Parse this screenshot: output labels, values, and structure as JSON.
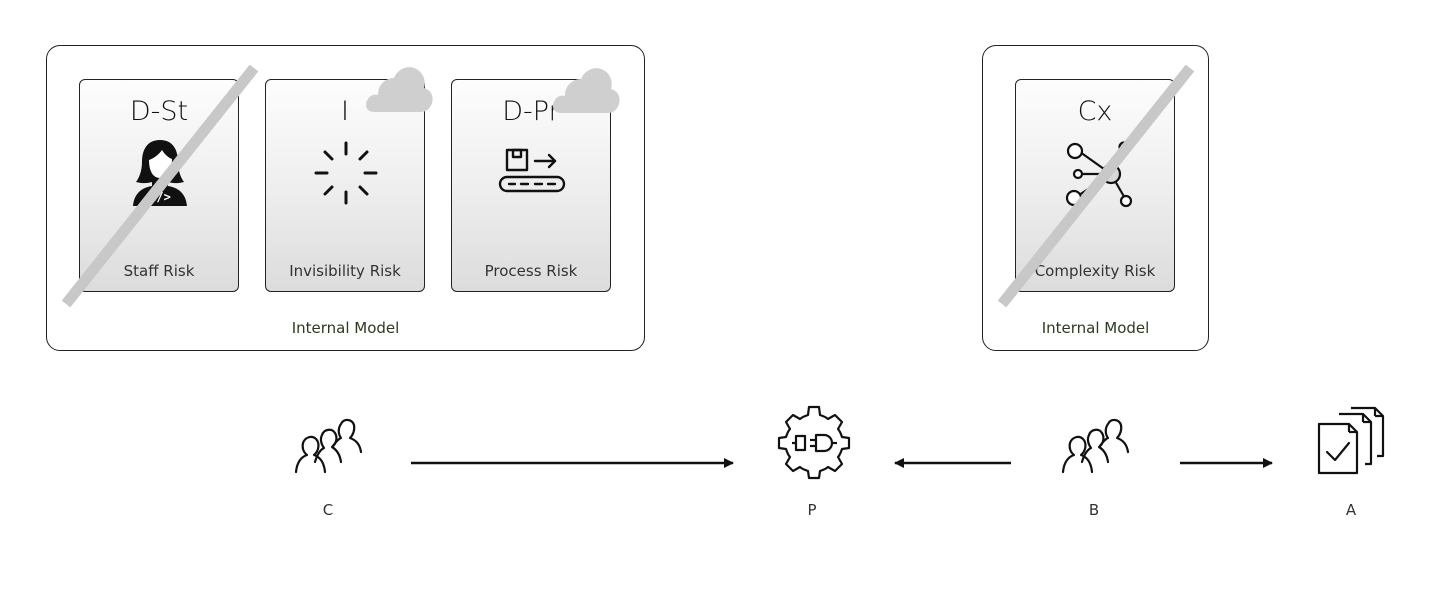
{
  "left_model": {
    "label": "Internal Model",
    "cards": [
      {
        "code": "D-St",
        "name": "Staff Risk",
        "icon": "developer-person-icon"
      },
      {
        "code": "I",
        "name": "Invisibility Risk",
        "icon": "loading-spinner-icon"
      },
      {
        "code": "D-Pr",
        "name": "Process Risk",
        "icon": "conveyor-belt-icon"
      }
    ]
  },
  "right_model": {
    "label": "Internal Model",
    "cards": [
      {
        "code": "Cx",
        "name": "Complexity Risk",
        "icon": "network-hub-icon"
      }
    ]
  },
  "nodes": [
    {
      "label": "C",
      "icon": "group-of-people-icon"
    },
    {
      "label": "P",
      "icon": "gear-plug-icon"
    },
    {
      "label": "B",
      "icon": "group-of-people-icon"
    },
    {
      "label": "A",
      "icon": "documents-check-icon"
    }
  ],
  "colors": {
    "strike": "#c8c8c8",
    "cloud": "#cfcfcf",
    "border": "#222222",
    "model_label": "#2c3a1f"
  }
}
